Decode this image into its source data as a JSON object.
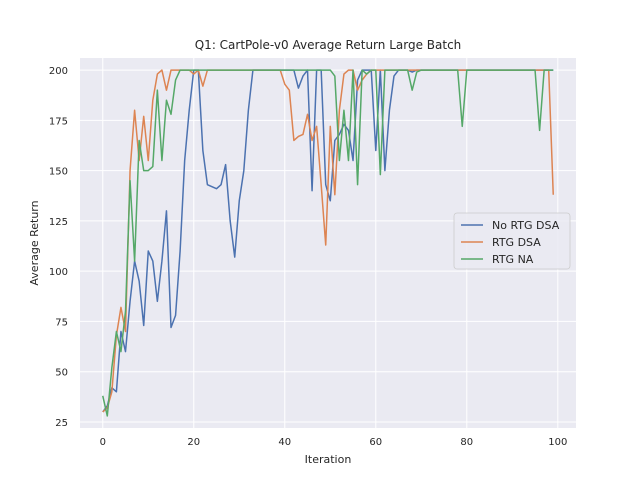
{
  "chart_data": {
    "type": "line",
    "title": "Q1: CartPole-v0 Average Return Large Batch",
    "xlabel": "Iteration",
    "ylabel": "Average Return",
    "xlim": [
      -5,
      104
    ],
    "ylim": [
      22,
      206
    ],
    "xticks": [
      0,
      20,
      40,
      60,
      80,
      100
    ],
    "yticks": [
      25,
      50,
      75,
      100,
      125,
      150,
      175,
      200
    ],
    "grid": true,
    "legend_position": "center-right",
    "series": [
      {
        "name": "No RTG DSA",
        "color": "#4c72b0",
        "values": [
          30,
          33,
          42,
          40,
          70,
          60,
          85,
          105,
          95,
          73,
          110,
          105,
          85,
          105,
          130,
          72,
          78,
          110,
          155,
          180,
          200,
          200,
          160,
          143,
          142,
          141,
          143,
          153,
          125,
          107,
          135,
          150,
          180,
          200,
          200,
          200,
          200,
          200,
          200,
          200,
          200,
          200,
          200,
          191,
          197,
          200,
          140,
          200,
          200,
          143,
          135,
          165,
          168,
          173,
          170,
          155,
          195,
          200,
          200,
          200,
          160,
          200,
          150,
          180,
          197,
          200,
          200,
          200,
          199,
          200,
          200,
          200,
          200,
          200,
          200,
          200,
          200,
          200,
          200,
          200,
          200,
          200,
          200,
          200,
          200,
          200,
          200,
          200,
          200,
          200,
          200,
          200,
          200,
          200,
          200,
          200,
          200,
          200,
          200,
          200
        ]
      },
      {
        "name": "RTG DSA",
        "color": "#dd8452",
        "values": [
          30,
          32,
          40,
          68,
          82,
          70,
          150,
          180,
          155,
          177,
          155,
          185,
          198,
          200,
          190,
          200,
          200,
          200,
          200,
          200,
          198,
          200,
          192,
          200,
          200,
          200,
          200,
          200,
          200,
          200,
          200,
          200,
          200,
          200,
          200,
          200,
          200,
          200,
          200,
          200,
          193,
          190,
          165,
          167,
          168,
          178,
          165,
          172,
          143,
          113,
          172,
          138,
          180,
          198,
          200,
          200,
          190,
          195,
          198,
          200,
          200,
          200,
          200,
          200,
          200,
          200,
          200,
          200,
          200,
          200,
          200,
          200,
          200,
          200,
          200,
          200,
          200,
          200,
          200,
          200,
          200,
          200,
          200,
          200,
          200,
          200,
          200,
          200,
          200,
          200,
          200,
          200,
          200,
          200,
          200,
          200,
          200,
          200,
          200,
          138
        ]
      },
      {
        "name": "RTG NA",
        "color": "#55a868",
        "values": [
          38,
          28,
          52,
          70,
          60,
          80,
          145,
          105,
          165,
          150,
          150,
          152,
          190,
          155,
          185,
          178,
          195,
          200,
          200,
          200,
          200,
          200,
          200,
          200,
          200,
          200,
          200,
          200,
          200,
          200,
          200,
          200,
          200,
          200,
          200,
          200,
          200,
          200,
          200,
          200,
          200,
          200,
          200,
          200,
          200,
          200,
          200,
          200,
          200,
          200,
          200,
          197,
          155,
          180,
          155,
          200,
          143,
          200,
          198,
          200,
          200,
          148,
          200,
          200,
          200,
          200,
          200,
          200,
          190,
          199,
          200,
          200,
          200,
          200,
          200,
          200,
          200,
          200,
          200,
          172,
          200,
          200,
          200,
          200,
          200,
          200,
          200,
          200,
          200,
          200,
          200,
          200,
          200,
          200,
          200,
          200,
          170,
          200,
          200,
          200
        ]
      }
    ]
  }
}
